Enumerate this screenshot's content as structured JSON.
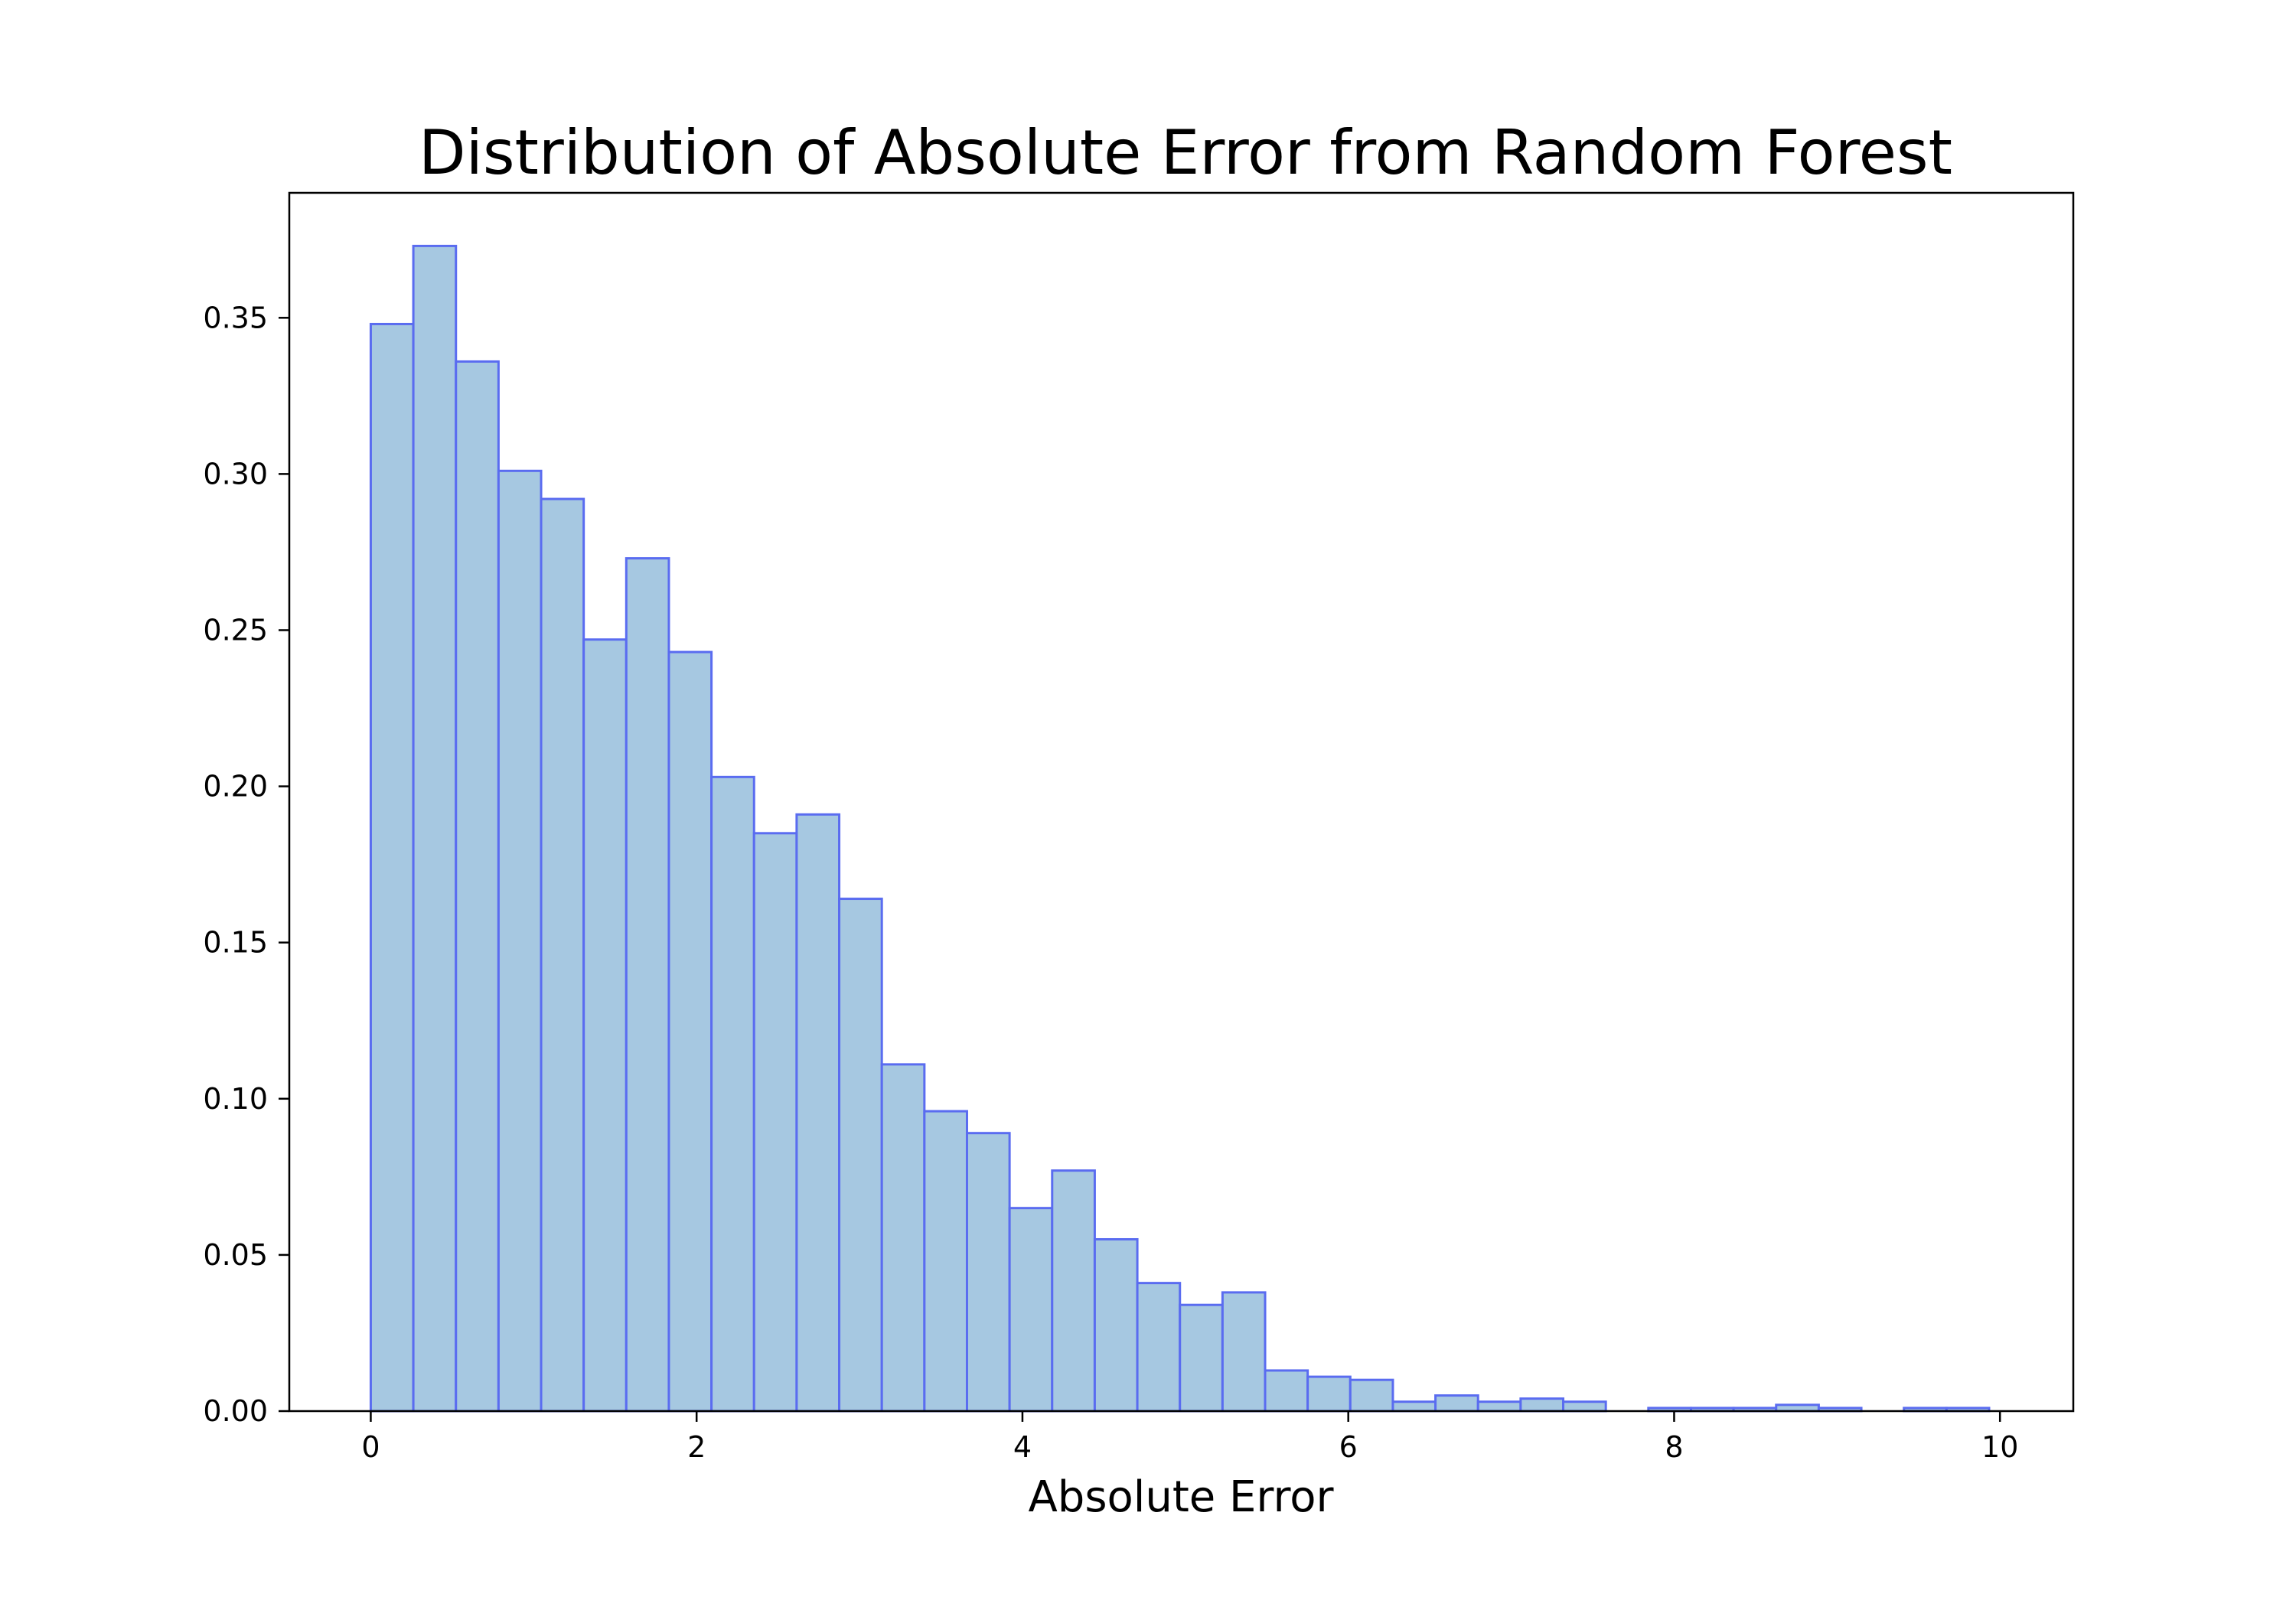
{
  "chart_data": {
    "type": "bar",
    "title": "Distribution of Absolute Error from Random Forest",
    "xlabel": "Absolute Error",
    "ylabel": "",
    "xlim": [
      -0.5,
      10.45
    ],
    "ylim": [
      0,
      0.39
    ],
    "x_ticks": [
      0,
      2,
      4,
      6,
      8,
      10
    ],
    "x_tick_labels": [
      "0",
      "2",
      "4",
      "6",
      "8",
      "10"
    ],
    "y_ticks": [
      0,
      0.05,
      0.1,
      0.15,
      0.2,
      0.25,
      0.3,
      0.35
    ],
    "y_tick_labels": [
      "0.00",
      "0.05",
      "0.10",
      "0.15",
      "0.20",
      "0.25",
      "0.30",
      "0.35"
    ],
    "grid": false,
    "bin_start": 0,
    "bin_width": 0.2614,
    "values": [
      0.348,
      0.373,
      0.336,
      0.301,
      0.292,
      0.247,
      0.273,
      0.243,
      0.203,
      0.185,
      0.191,
      0.164,
      0.111,
      0.096,
      0.089,
      0.065,
      0.077,
      0.055,
      0.041,
      0.034,
      0.038,
      0.013,
      0.011,
      0.01,
      0.003,
      0.005,
      0.003,
      0.004,
      0.003,
      0,
      0.001,
      0.001,
      0.001,
      0.002,
      0.001,
      0,
      0.001,
      0.001
    ],
    "colors": {
      "bar_fill": "#a6c8e1",
      "bar_edge": "#5a6cf0",
      "axes": "#000000"
    }
  }
}
